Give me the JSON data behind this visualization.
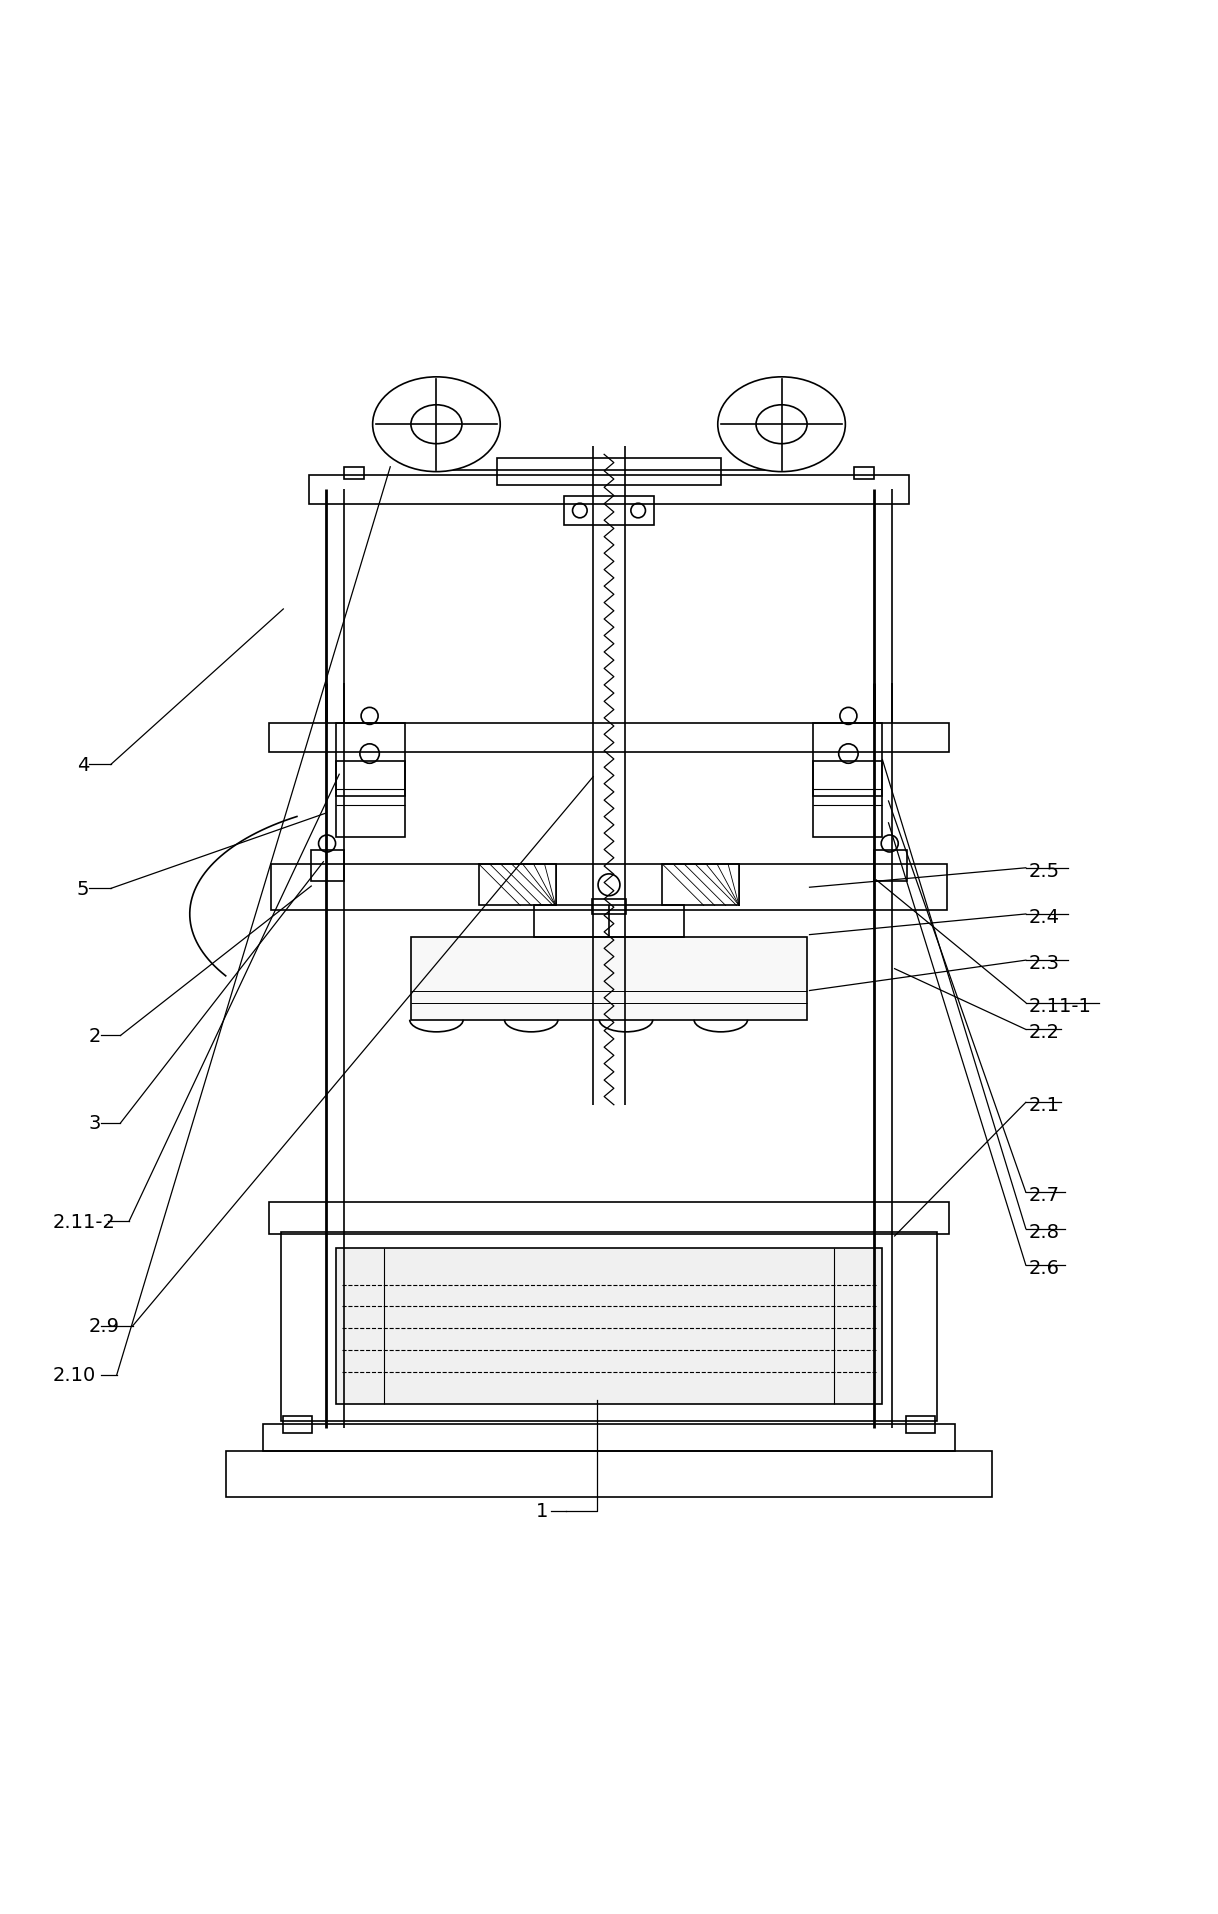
{
  "bg_color": "#ffffff",
  "line_color": "#000000",
  "lw": 1.2,
  "fig_width": 12.18,
  "fig_height": 19.15
}
